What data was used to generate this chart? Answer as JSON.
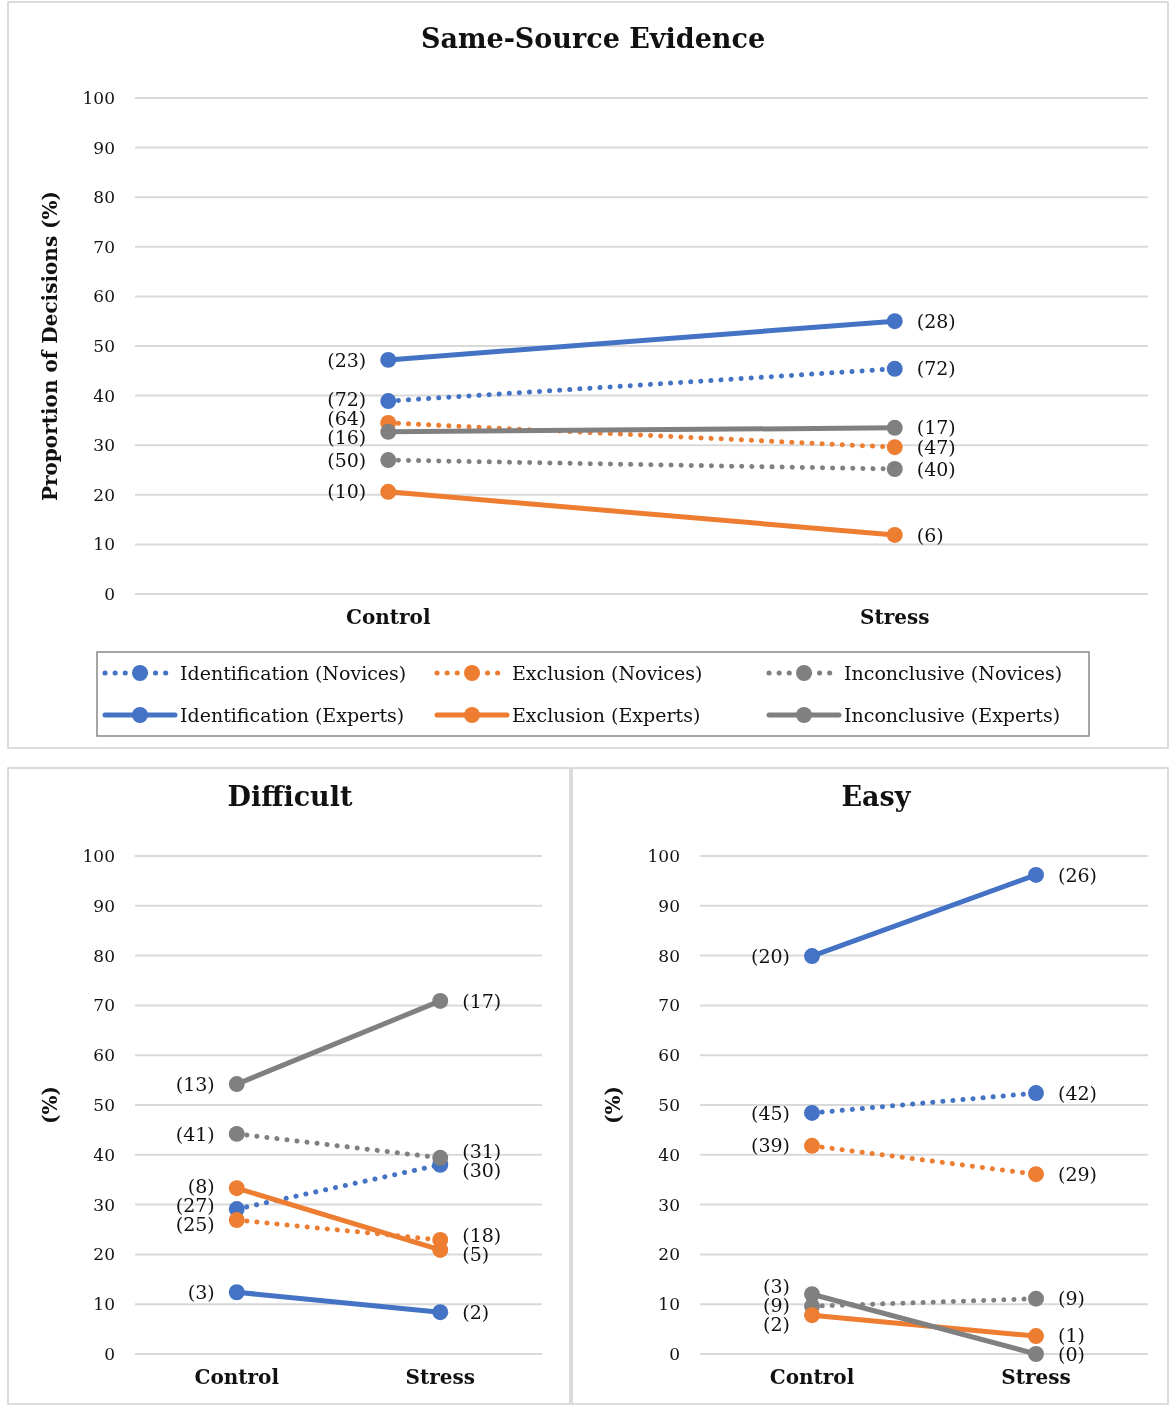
{
  "chart_data": [
    {
      "type": "line",
      "title": "Same-Source Evidence",
      "ylabel": "Proportion of Decisions (%)",
      "categories": [
        "Control",
        "Stress"
      ],
      "ylim": [
        0,
        100
      ],
      "yticks": [
        0,
        10,
        20,
        30,
        40,
        50,
        60,
        70,
        80,
        90,
        100
      ],
      "grid": "y",
      "legend": "bottom",
      "marker": "circle",
      "series": [
        {
          "name": "Identification (Novices)",
          "color": "#4472c4",
          "line_style": "dotted",
          "values": [
            38.9,
            45.4
          ]
        },
        {
          "name": "Exclusion (Novices)",
          "color": "#ed7d31",
          "line_style": "dotted",
          "values": [
            34.5,
            29.6
          ]
        },
        {
          "name": "Inconclusive (Novices)",
          "color": "#808080",
          "line_style": "dotted",
          "values": [
            27.0,
            25.2
          ]
        },
        {
          "name": "Identification (Experts)",
          "color": "#4472c4",
          "line_style": "solid",
          "values": [
            47.2,
            55.0
          ]
        },
        {
          "name": "Exclusion (Experts)",
          "color": "#ed7d31",
          "line_style": "solid",
          "values": [
            20.6,
            11.9
          ]
        },
        {
          "name": "Inconclusive (Experts)",
          "color": "#808080",
          "line_style": "solid",
          "values": [
            32.7,
            33.5
          ]
        }
      ],
      "annotations": [
        {
          "text": "(72)",
          "x": "Control",
          "y": 38.9
        },
        {
          "text": "(72)",
          "x": "Stress",
          "y": 45.4
        },
        {
          "text": "(64)",
          "x": "Control",
          "y": 34.5
        },
        {
          "text": "(47)",
          "x": "Stress",
          "y": 29.6
        },
        {
          "text": "(50)",
          "x": "Control",
          "y": 27.0
        },
        {
          "text": "(40)",
          "x": "Stress",
          "y": 25.2
        },
        {
          "text": "(23)",
          "x": "Control",
          "y": 47.2
        },
        {
          "text": "(28)",
          "x": "Stress",
          "y": 55.0
        },
        {
          "text": "(10)",
          "x": "Control",
          "y": 20.6
        },
        {
          "text": "(6)",
          "x": "Stress",
          "y": 11.9
        },
        {
          "text": "(16)",
          "x": "Control",
          "y": 32.7
        },
        {
          "text": "(17)",
          "x": "Stress",
          "y": 33.5
        }
      ]
    },
    {
      "type": "line",
      "title": "Difficult",
      "ylabel": "(%)",
      "categories": [
        "Control",
        "Stress"
      ],
      "ylim": [
        0,
        100
      ],
      "yticks": [
        0,
        10,
        20,
        30,
        40,
        50,
        60,
        70,
        80,
        90,
        100
      ],
      "grid": "y",
      "marker": "circle",
      "series": [
        {
          "color": "#4472c4",
          "line_style": "dotted",
          "values": [
            29.1,
            38.0
          ]
        },
        {
          "color": "#ed7d31",
          "line_style": "dotted",
          "values": [
            26.9,
            22.9
          ]
        },
        {
          "color": "#808080",
          "line_style": "dotted",
          "values": [
            44.2,
            39.4
          ]
        },
        {
          "color": "#4472c4",
          "line_style": "solid",
          "values": [
            12.4,
            8.4
          ]
        },
        {
          "color": "#ed7d31",
          "line_style": "solid",
          "values": [
            33.3,
            20.9
          ]
        },
        {
          "color": "#808080",
          "line_style": "solid",
          "values": [
            54.2,
            70.9
          ]
        }
      ],
      "annotations": [
        {
          "text": "(27)",
          "x": "Control",
          "y": 29.1
        },
        {
          "text": "(30)",
          "x": "Stress",
          "y": 38.0
        },
        {
          "text": "(25)",
          "x": "Control",
          "y": 26.9
        },
        {
          "text": "(18)",
          "x": "Stress",
          "y": 22.9
        },
        {
          "text": "(41)",
          "x": "Control",
          "y": 44.2
        },
        {
          "text": "(31)",
          "x": "Stress",
          "y": 39.4
        },
        {
          "text": "(3)",
          "x": "Control",
          "y": 12.4
        },
        {
          "text": "(2)",
          "x": "Stress",
          "y": 8.4
        },
        {
          "text": "(8)",
          "x": "Control",
          "y": 33.3
        },
        {
          "text": "(5)",
          "x": "Stress",
          "y": 20.9
        },
        {
          "text": "(13)",
          "x": "Control",
          "y": 54.2
        },
        {
          "text": "(17)",
          "x": "Stress",
          "y": 70.9
        }
      ]
    },
    {
      "type": "line",
      "title": "Easy",
      "ylabel": "(%)",
      "categories": [
        "Control",
        "Stress"
      ],
      "ylim": [
        0,
        100
      ],
      "yticks": [
        0,
        10,
        20,
        30,
        40,
        50,
        60,
        70,
        80,
        90,
        100
      ],
      "grid": "y",
      "marker": "circle",
      "series": [
        {
          "color": "#4472c4",
          "line_style": "dotted",
          "values": [
            48.4,
            52.4
          ]
        },
        {
          "color": "#ed7d31",
          "line_style": "dotted",
          "values": [
            41.8,
            36.1
          ]
        },
        {
          "color": "#808080",
          "line_style": "dotted",
          "values": [
            9.6,
            11.1
          ]
        },
        {
          "color": "#4472c4",
          "line_style": "solid",
          "values": [
            79.9,
            96.2
          ]
        },
        {
          "color": "#ed7d31",
          "line_style": "solid",
          "values": [
            7.8,
            3.6
          ]
        },
        {
          "color": "#808080",
          "line_style": "solid",
          "values": [
            12.0,
            0
          ]
        }
      ],
      "annotations": [
        {
          "text": "(45)",
          "x": "Control",
          "y": 48.4
        },
        {
          "text": "(42)",
          "x": "Stress",
          "y": 52.4
        },
        {
          "text": "(39)",
          "x": "Control",
          "y": 41.8
        },
        {
          "text": "(29)",
          "x": "Stress",
          "y": 36.1
        },
        {
          "text": "(9)",
          "x": "Control",
          "y": 9.6
        },
        {
          "text": "(9)",
          "x": "Stress",
          "y": 11.1
        },
        {
          "text": "(20)",
          "x": "Control",
          "y": 79.9
        },
        {
          "text": "(26)",
          "x": "Stress",
          "y": 96.2
        },
        {
          "text": "(2)",
          "x": "Control",
          "y": 7.8
        },
        {
          "text": "(1)",
          "x": "Stress",
          "y": 3.6
        },
        {
          "text": "(3)",
          "x": "Control",
          "y": 12.0
        },
        {
          "text": "(0)",
          "x": "Stress",
          "y": 0
        }
      ]
    }
  ]
}
